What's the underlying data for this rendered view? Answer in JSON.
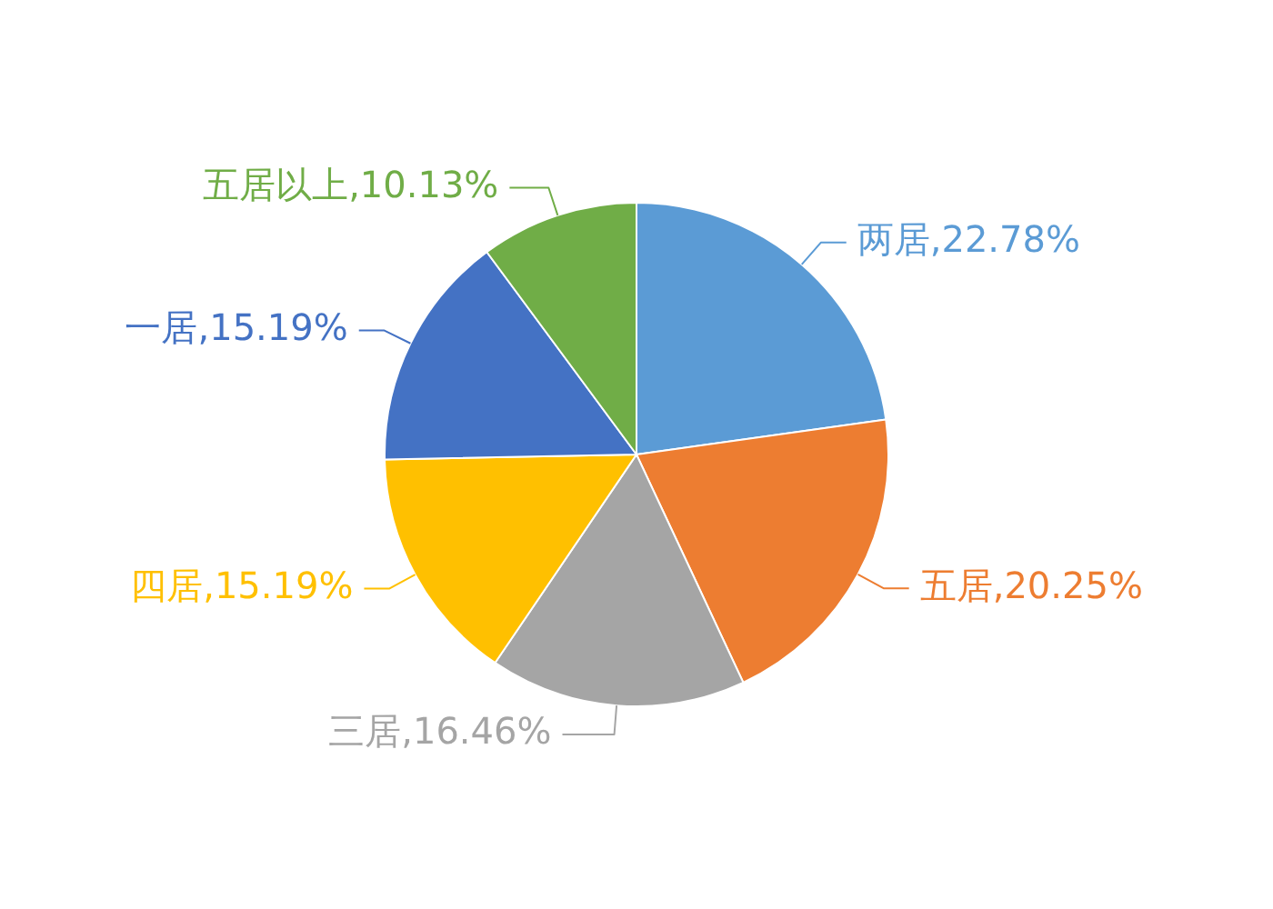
{
  "chart_data": {
    "type": "pie",
    "categories": [
      "两居",
      "五居",
      "三居",
      "四居",
      "一居",
      "五居以上"
    ],
    "values": [
      22.78,
      20.25,
      16.46,
      15.19,
      15.19,
      10.13
    ],
    "colors": [
      "#5b9bd5",
      "#ed7d31",
      "#a5a5a5",
      "#ffc000",
      "#4472c4",
      "#70ad47"
    ],
    "value_labels": [
      "22.78%",
      "20.25%",
      "16.46%",
      "15.19%",
      "15.19%",
      "10.13%"
    ]
  }
}
